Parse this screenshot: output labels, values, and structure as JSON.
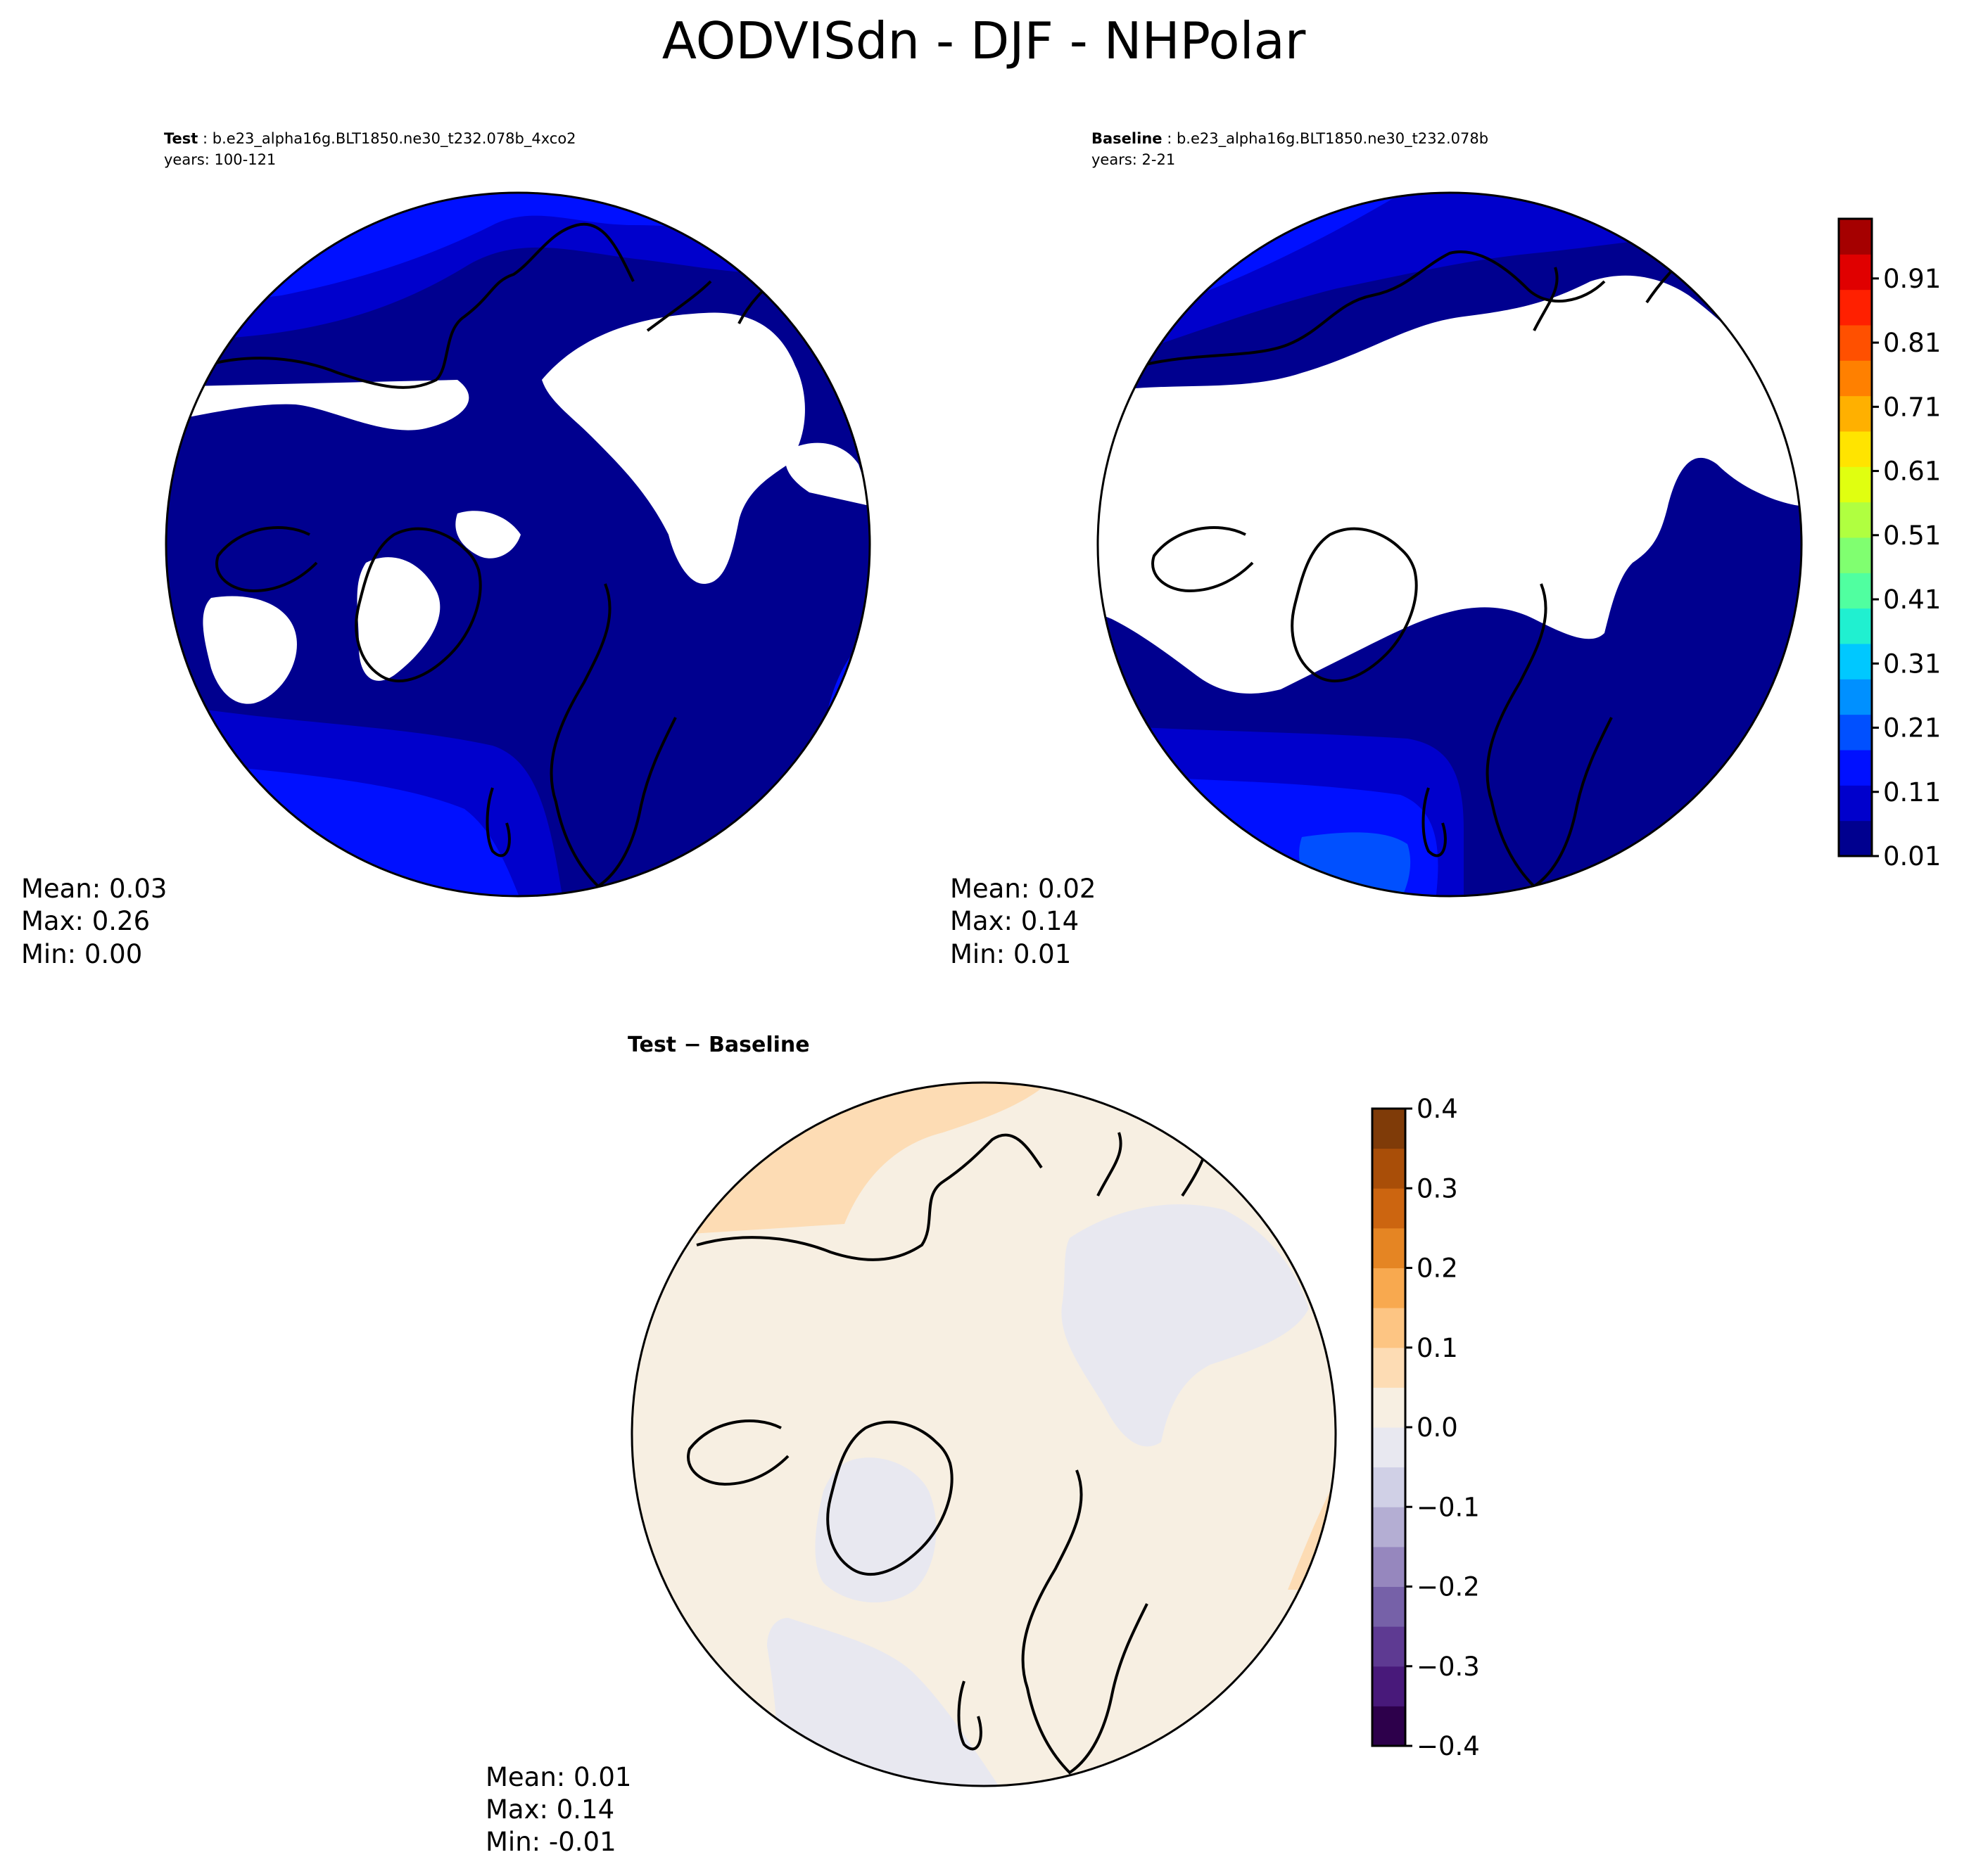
{
  "figure": {
    "title": "AODVISdn - DJF - NHPolar"
  },
  "panels": {
    "test": {
      "label": "Test",
      "case": "b.e23_alpha16g.BLT1850.ne30_t232.078b_4xco2",
      "years": "years: 100-121",
      "stats": {
        "mean": "Mean:  0.03",
        "max": "Max:  0.26",
        "min": "Min:  0.00"
      }
    },
    "baseline": {
      "label": "Baseline",
      "case": "b.e23_alpha16g.BLT1850.ne30_t232.078b",
      "years": "years: 2-21",
      "stats": {
        "mean": "Mean:  0.02",
        "max": "Max:  0.14",
        "min": "Min:  0.01"
      }
    },
    "diff": {
      "label": "Test − Baseline",
      "stats": {
        "mean": "Mean:  0.01",
        "max": "Max:  0.14",
        "min": "Min: -0.01"
      }
    }
  },
  "colorbars": {
    "main": {
      "ticks": [
        "0.01",
        "0.11",
        "0.21",
        "0.31",
        "0.41",
        "0.51",
        "0.61",
        "0.71",
        "0.81",
        "0.91"
      ],
      "colors": [
        "#00008f",
        "#0000cc",
        "#0010ff",
        "#0050ff",
        "#0090ff",
        "#00c8ff",
        "#20f0d0",
        "#50ffa0",
        "#80ff70",
        "#b0ff40",
        "#e0ff10",
        "#ffe400",
        "#ffb000",
        "#ff8000",
        "#ff5000",
        "#ff2000",
        "#e00000",
        "#a50000"
      ]
    },
    "diff": {
      "ticks": [
        "0.4",
        "0.3",
        "0.2",
        "0.1",
        "0.0",
        "−0.1",
        "−0.2",
        "−0.3",
        "−0.4"
      ],
      "colors": [
        "#2d004b",
        "#48197a",
        "#5e3a92",
        "#7661a8",
        "#9687be",
        "#b4aed3",
        "#d0d0e6",
        "#e8e8f0",
        "#f7efe2",
        "#fddcb4",
        "#fdc583",
        "#f8a94f",
        "#e58523",
        "#cc6510",
        "#a94e08",
        "#7f3b08"
      ]
    }
  },
  "map_colors": {
    "level0": "#00008f",
    "level1": "#0000cc",
    "level2": "#0010ff",
    "level3": "#0050ff",
    "diff_pos": "#f7efe2",
    "diff_pos2": "#fddcb4",
    "diff_neg": "#e8e8f0"
  }
}
